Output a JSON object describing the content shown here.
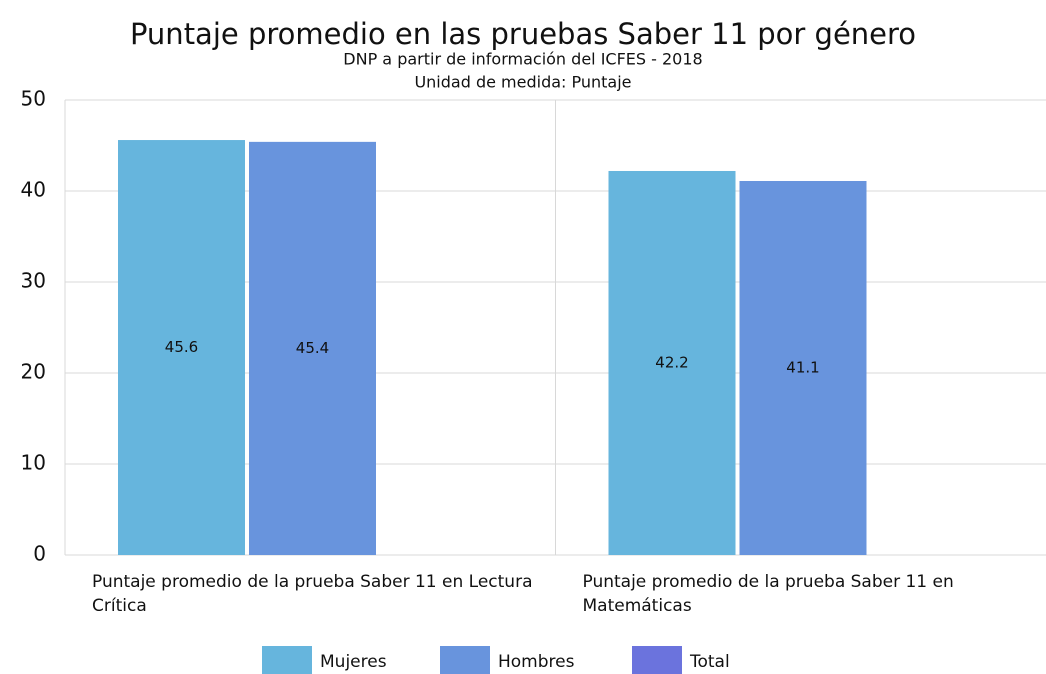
{
  "chart_data": {
    "type": "bar",
    "title": "Puntaje promedio en las pruebas Saber 11 por género",
    "subtitle": [
      "DNP a partir de información del ICFES - 2018",
      "Unidad de medida: Puntaje"
    ],
    "categories": [
      "Puntaje promedio de la prueba Saber 11 en Lectura Crítica",
      "Puntaje promedio de la prueba Saber 11 en Matemáticas"
    ],
    "series": [
      {
        "name": "Mujeres",
        "color": "#66b5dd",
        "values": [
          45.6,
          42.2
        ]
      },
      {
        "name": "Hombres",
        "color": "#6894dd",
        "values": [
          45.4,
          41.1
        ]
      },
      {
        "name": "Total",
        "color": "#6b73dd",
        "values": [
          null,
          null
        ]
      }
    ],
    "ylim": [
      0,
      50
    ],
    "yticks": [
      0,
      10,
      20,
      30,
      40,
      50
    ],
    "grid": true,
    "legend": "bottom"
  }
}
